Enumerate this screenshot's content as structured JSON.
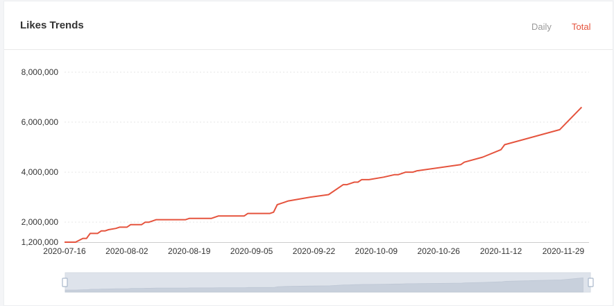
{
  "header": {
    "title": "Likes Trends",
    "tabs": [
      {
        "label": "Daily",
        "active": false
      },
      {
        "label": "Total",
        "active": true
      }
    ]
  },
  "colors": {
    "line": "#e5533d",
    "active_tab": "#e5533d",
    "inactive_tab": "#9a9a9a",
    "slider_fill": "#d7dde7",
    "slider_handle": "#a9b8cb"
  },
  "chart_data": {
    "type": "line",
    "title": "",
    "xlabel": "",
    "ylabel": "",
    "ylim": [
      1200000,
      8000000
    ],
    "yticks": [
      1200000,
      2000000,
      4000000,
      6000000,
      8000000
    ],
    "ytick_labels": [
      "1,200,000",
      "2,000,000",
      "4,000,000",
      "6,000,000",
      "8,000,000"
    ],
    "xlim": [
      "2020-07-16",
      "2020-12-06"
    ],
    "xticks": [
      "2020-07-16",
      "2020-08-02",
      "2020-08-19",
      "2020-09-05",
      "2020-09-22",
      "2020-10-09",
      "2020-10-26",
      "2020-11-12",
      "2020-11-29"
    ],
    "grid": true,
    "series": [
      {
        "x": [
          "2020-07-16",
          "2020-07-19",
          "2020-07-21",
          "2020-07-22",
          "2020-07-23",
          "2020-07-25",
          "2020-07-26",
          "2020-07-27",
          "2020-07-28",
          "2020-07-30",
          "2020-07-31",
          "2020-08-02",
          "2020-08-03",
          "2020-08-06",
          "2020-08-07",
          "2020-08-08",
          "2020-08-09",
          "2020-08-10",
          "2020-08-11",
          "2020-08-18",
          "2020-08-19",
          "2020-08-25",
          "2020-08-27",
          "2020-09-03",
          "2020-09-04",
          "2020-09-10",
          "2020-09-11",
          "2020-09-12",
          "2020-09-13",
          "2020-09-14",
          "2020-09-15",
          "2020-09-21",
          "2020-09-26",
          "2020-09-30",
          "2020-10-01",
          "2020-10-02",
          "2020-10-03",
          "2020-10-04",
          "2020-10-05",
          "2020-10-06",
          "2020-10-07",
          "2020-10-11",
          "2020-10-14",
          "2020-10-15",
          "2020-10-16",
          "2020-10-17",
          "2020-10-18",
          "2020-10-19",
          "2020-10-20",
          "2020-11-01",
          "2020-11-02",
          "2020-11-07",
          "2020-11-12",
          "2020-11-13",
          "2020-11-28",
          "2020-12-04"
        ],
        "y": [
          1200000,
          1200000,
          1350000,
          1350000,
          1550000,
          1550000,
          1650000,
          1650000,
          1700000,
          1750000,
          1800000,
          1800000,
          1900000,
          1900000,
          2000000,
          2000000,
          2050000,
          2100000,
          2100000,
          2100000,
          2150000,
          2150000,
          2250000,
          2250000,
          2350000,
          2350000,
          2400000,
          2700000,
          2750000,
          2800000,
          2850000,
          3000000,
          3100000,
          3500000,
          3500000,
          3550000,
          3600000,
          3600000,
          3700000,
          3700000,
          3700000,
          3800000,
          3900000,
          3900000,
          3950000,
          4000000,
          4000000,
          4000000,
          4050000,
          4300000,
          4400000,
          4600000,
          4900000,
          5100000,
          5700000,
          6600000
        ]
      }
    ],
    "zoom_slider": {
      "start": 0,
      "end": 1
    }
  }
}
